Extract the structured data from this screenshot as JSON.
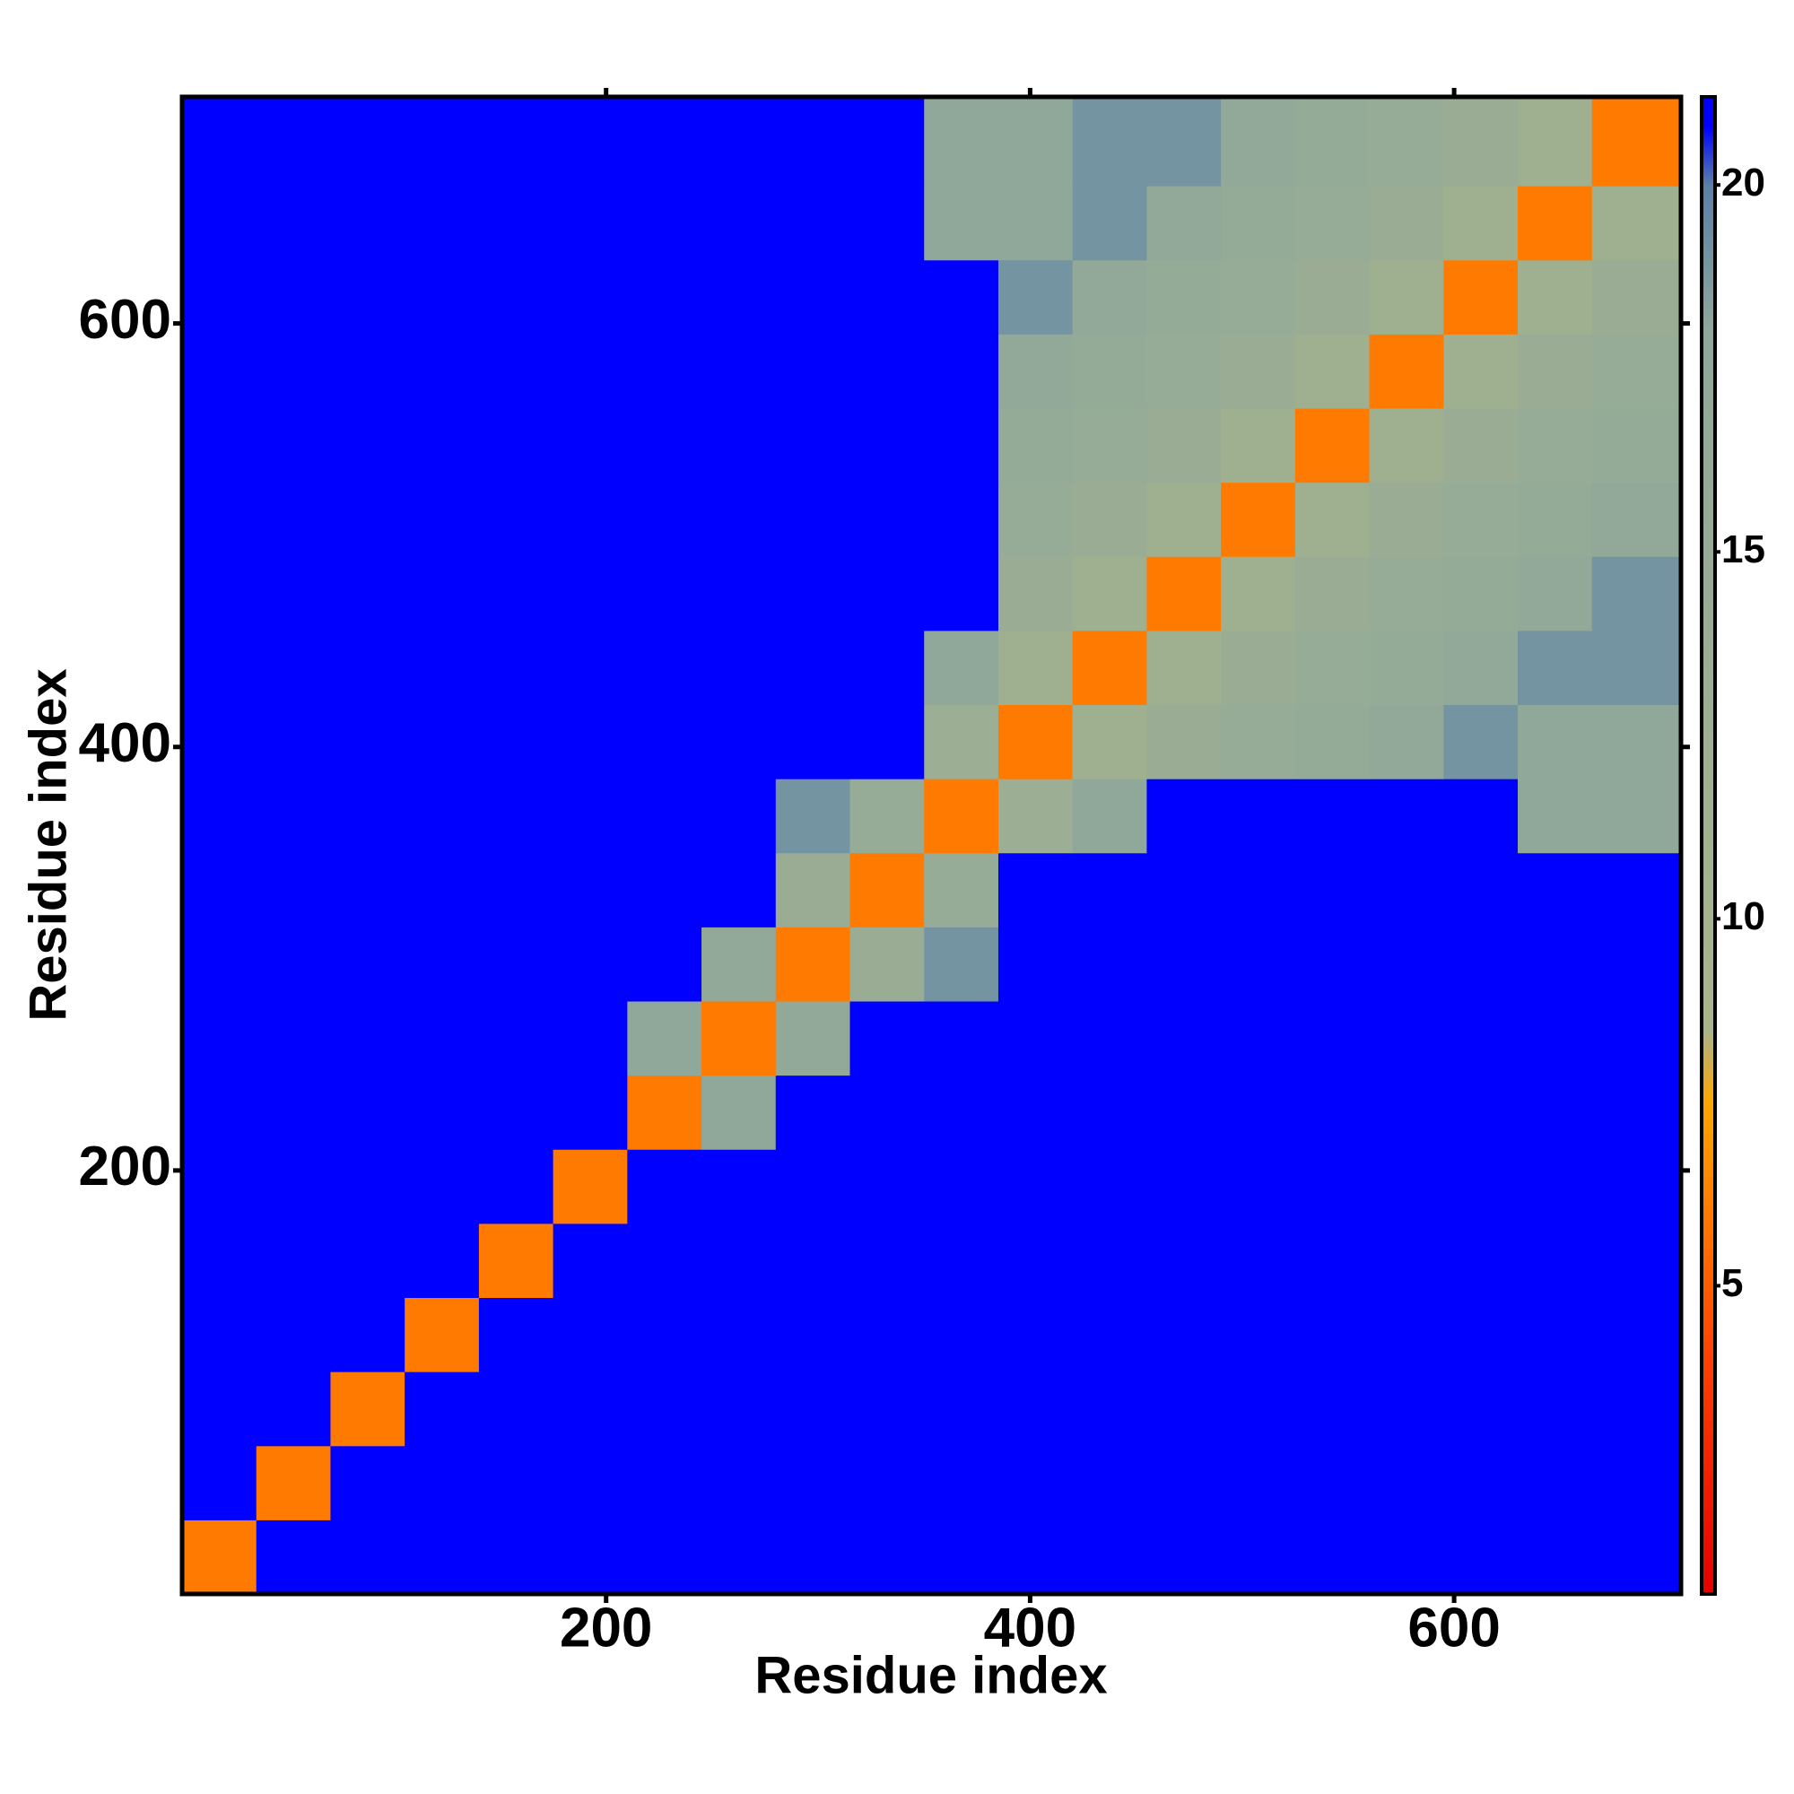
{
  "chart_data": {
    "type": "heatmap",
    "x_label": "Residue index",
    "y_label": "Residue index",
    "xlim": [
      0,
      707
    ],
    "ylim": [
      0,
      707
    ],
    "xticks": [
      200,
      400,
      600
    ],
    "yticks": [
      200,
      400,
      600
    ],
    "x_edges": [
      0,
      35,
      70,
      105,
      140,
      175,
      210,
      245,
      280,
      315,
      350,
      385,
      420,
      455,
      490,
      525,
      560,
      595,
      630,
      665,
      707
    ],
    "y_edges": [
      0,
      35,
      70,
      105,
      140,
      175,
      210,
      245,
      280,
      315,
      350,
      385,
      420,
      455,
      490,
      525,
      560,
      595,
      630,
      665,
      707
    ],
    "z": [
      [
        6,
        21,
        21,
        21,
        21,
        21,
        21,
        21,
        21,
        21,
        21,
        21,
        21,
        21,
        21,
        21,
        21,
        21,
        21,
        21
      ],
      [
        21,
        6,
        21,
        21,
        21,
        21,
        21,
        21,
        21,
        21,
        21,
        21,
        21,
        21,
        21,
        21,
        21,
        21,
        21,
        21
      ],
      [
        21,
        21,
        6,
        21,
        21,
        21,
        21,
        21,
        21,
        21,
        21,
        21,
        21,
        21,
        21,
        21,
        21,
        21,
        21,
        21
      ],
      [
        21,
        21,
        21,
        6,
        21,
        21,
        21,
        21,
        21,
        21,
        21,
        21,
        21,
        21,
        21,
        21,
        21,
        21,
        21,
        21
      ],
      [
        21,
        21,
        21,
        21,
        6,
        21,
        21,
        21,
        21,
        21,
        21,
        21,
        21,
        21,
        21,
        21,
        21,
        21,
        21,
        21
      ],
      [
        21,
        21,
        21,
        21,
        21,
        6,
        21,
        21,
        21,
        21,
        21,
        21,
        21,
        21,
        21,
        21,
        21,
        21,
        21,
        21
      ],
      [
        21,
        21,
        21,
        21,
        21,
        21,
        6,
        18,
        21,
        21,
        21,
        21,
        21,
        21,
        21,
        21,
        21,
        21,
        21,
        21
      ],
      [
        21,
        21,
        21,
        21,
        21,
        21,
        18,
        6,
        17,
        21,
        21,
        21,
        21,
        21,
        21,
        21,
        21,
        21,
        21,
        21
      ],
      [
        21,
        21,
        21,
        21,
        21,
        21,
        21,
        17,
        6,
        14,
        19,
        21,
        21,
        21,
        21,
        21,
        21,
        21,
        21,
        21
      ],
      [
        21,
        21,
        21,
        21,
        21,
        21,
        21,
        21,
        14,
        6,
        15,
        21,
        21,
        21,
        21,
        21,
        21,
        21,
        21,
        21
      ],
      [
        21,
        21,
        21,
        21,
        21,
        21,
        21,
        21,
        19,
        15,
        6,
        13,
        18,
        21,
        21,
        21,
        21,
        21,
        18,
        18
      ],
      [
        21,
        21,
        21,
        21,
        21,
        21,
        21,
        21,
        21,
        21,
        13,
        6,
        12,
        14,
        15,
        16,
        17,
        19,
        18,
        18
      ],
      [
        21,
        21,
        21,
        21,
        21,
        21,
        21,
        21,
        21,
        21,
        18,
        12,
        6,
        12,
        14,
        15,
        16,
        17,
        19,
        19
      ],
      [
        21,
        21,
        21,
        21,
        21,
        21,
        21,
        21,
        21,
        21,
        21,
        14,
        12,
        6,
        12,
        14,
        15,
        16,
        17,
        19
      ],
      [
        21,
        21,
        21,
        21,
        21,
        21,
        21,
        21,
        21,
        21,
        21,
        15,
        14,
        12,
        6,
        12,
        14,
        15,
        16,
        17
      ],
      [
        21,
        21,
        21,
        21,
        21,
        21,
        21,
        21,
        21,
        21,
        21,
        16,
        15,
        14,
        12,
        6,
        12,
        14,
        15,
        16
      ],
      [
        21,
        21,
        21,
        21,
        21,
        21,
        21,
        21,
        21,
        21,
        21,
        17,
        16,
        15,
        14,
        12,
        6,
        12,
        14,
        15
      ],
      [
        21,
        21,
        21,
        21,
        21,
        21,
        21,
        21,
        21,
        21,
        21,
        19,
        17,
        16,
        15,
        14,
        12,
        6,
        12,
        14
      ],
      [
        21,
        21,
        21,
        21,
        21,
        21,
        21,
        21,
        21,
        21,
        18,
        18,
        19,
        17,
        16,
        15,
        14,
        12,
        6,
        12
      ],
      [
        21,
        21,
        21,
        21,
        21,
        21,
        21,
        21,
        21,
        21,
        18,
        18,
        19,
        19,
        17,
        16,
        15,
        14,
        12,
        6
      ]
    ],
    "clim": [
      0.8,
      21.2
    ],
    "cticks": [
      5,
      10,
      15,
      20
    ],
    "colorscale": [
      [
        0.8,
        "#e60000"
      ],
      [
        4,
        "#ff4000"
      ],
      [
        7.5,
        "#ffa500"
      ],
      [
        8.5,
        "#a8b48c"
      ],
      [
        18,
        "#8fa89a"
      ],
      [
        20,
        "#5b7fa8"
      ],
      [
        20.8,
        "#0000ff"
      ],
      [
        21.2,
        "#0000ff"
      ]
    ]
  }
}
